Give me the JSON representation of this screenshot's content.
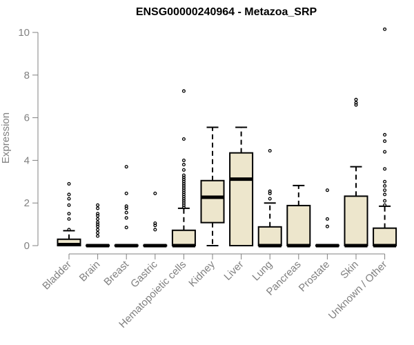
{
  "chart_data": {
    "type": "boxplot",
    "title": "ENSG00000240964 - Metazoa_SRP",
    "xlabel": "",
    "ylabel": "Expression",
    "ylim": [
      0,
      10
    ],
    "yticks": [
      0,
      2,
      4,
      6,
      8,
      10
    ],
    "grid": false,
    "legend": "none",
    "box_fill": "#ede6cc",
    "categories": [
      "Bladder",
      "Brain",
      "Breast",
      "Gastric",
      "Hematopoietic cells",
      "Kidney",
      "Liver",
      "Lung",
      "Pancreas",
      "Prostate",
      "Skin",
      "Unknown / Other"
    ],
    "boxes": [
      {
        "q1": 0.0,
        "median": 0.05,
        "q3": 0.3,
        "whisker_low": 0.0,
        "whisker_high": 0.7,
        "outliers": [
          0.75,
          1.25,
          1.5,
          1.9,
          2.2,
          2.4,
          2.9
        ]
      },
      {
        "q1": 0.0,
        "median": 0.0,
        "q3": 0.02,
        "whisker_low": 0.0,
        "whisker_high": 0.05,
        "outliers": [
          0.45,
          0.6,
          0.75,
          0.9,
          1.0,
          1.1,
          1.25,
          1.4,
          1.5,
          1.75,
          1.9
        ]
      },
      {
        "q1": 0.0,
        "median": 0.0,
        "q3": 0.02,
        "whisker_low": 0.0,
        "whisker_high": 0.05,
        "outliers": [
          0.85,
          1.3,
          1.55,
          1.75,
          1.85,
          2.45,
          3.7
        ]
      },
      {
        "q1": 0.0,
        "median": 0.0,
        "q3": 0.02,
        "whisker_low": 0.0,
        "whisker_high": 0.05,
        "outliers": [
          0.75,
          0.95,
          1.05,
          2.45
        ]
      },
      {
        "q1": 0.0,
        "median": 0.0,
        "q3": 0.72,
        "whisker_low": 0.0,
        "whisker_high": 1.75,
        "outliers": [
          1.8,
          1.9,
          2.0,
          2.1,
          2.2,
          2.3,
          2.4,
          2.5,
          2.6,
          2.7,
          2.8,
          2.9,
          3.0,
          3.1,
          3.2,
          3.3,
          3.55,
          3.8,
          4.0,
          5.0,
          7.25
        ]
      },
      {
        "q1": 1.08,
        "median": 2.27,
        "q3": 3.05,
        "whisker_low": 0.0,
        "whisker_high": 5.55,
        "outliers": []
      },
      {
        "q1": 0.0,
        "median": 3.12,
        "q3": 4.35,
        "whisker_low": 0.0,
        "whisker_high": 5.55,
        "outliers": []
      },
      {
        "q1": 0.0,
        "median": 0.0,
        "q3": 0.88,
        "whisker_low": 0.0,
        "whisker_high": 2.0,
        "outliers": [
          0.0,
          2.2,
          2.45,
          2.55,
          4.45
        ]
      },
      {
        "q1": 0.0,
        "median": 0.0,
        "q3": 1.88,
        "whisker_low": 0.0,
        "whisker_high": 2.82,
        "outliers": []
      },
      {
        "q1": 0.0,
        "median": 0.0,
        "q3": 0.02,
        "whisker_low": 0.0,
        "whisker_high": 0.05,
        "outliers": [
          0.9,
          1.25,
          2.6
        ]
      },
      {
        "q1": 0.0,
        "median": 0.0,
        "q3": 2.32,
        "whisker_low": 0.0,
        "whisker_high": 3.7,
        "outliers": [
          6.6,
          6.7,
          6.85
        ]
      },
      {
        "q1": 0.0,
        "median": 0.0,
        "q3": 0.82,
        "whisker_low": 0.0,
        "whisker_high": 1.85,
        "outliers": [
          1.9,
          2.1,
          2.4,
          2.6,
          2.8,
          3.0,
          3.6,
          4.4,
          4.9,
          5.2,
          10.15
        ]
      }
    ]
  }
}
